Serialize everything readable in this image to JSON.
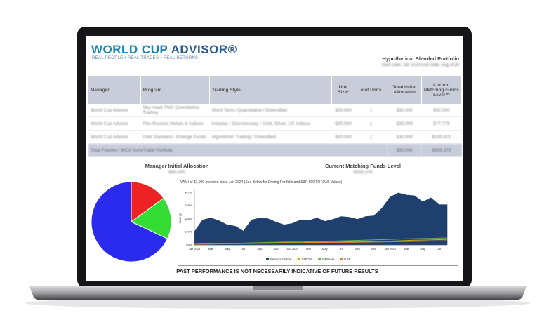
{
  "header": {
    "logo_a": "WORLD CUP",
    "logo_b": "ADVISOR®",
    "tagline": "REAL PEOPLE • REAL TRADES • REAL RETURNS",
    "report_title": "Hypothetical Blended Portfolio",
    "dates": "Start Date: Jan 2024   End Date: Aug 2026"
  },
  "table": {
    "columns": [
      "Manager",
      "Program",
      "Trading Style",
      "Unit Size*",
      "# of Units",
      "Total Initial Allocation",
      "Current Matching Funds Level **"
    ],
    "rows": [
      [
        "World Cup Advisor",
        "Sky Hawk TNG Quantitative Trading",
        "Short Term / Quantitative / Diversified",
        "$30,000",
        "1",
        "$30,000",
        "$92,000"
      ],
      [
        "World Cup Advisor",
        "Flex Rockies Metals & Indices",
        "Intraday / Discretionary / Gold, Silver, US Indices",
        "$30,000",
        "1",
        "$30,000",
        "$77,775"
      ],
      [
        "World Cup Advisor",
        "Gold Standard - Emerge Funds",
        "Algorithmic Trading / Diversified",
        "$30,000",
        "1",
        "$30,000",
        "$135,601"
      ]
    ],
    "total": {
      "label": "Total Futures / WCA Sum/Trade Portfolio",
      "allocation": "$90,000",
      "matching": "$305,376"
    }
  },
  "summary": {
    "allocation_title": "Manager Initial Allocation",
    "allocation_value": "$90,000",
    "matching_title": "Current Matching Funds Level",
    "matching_value": "$305,376"
  },
  "disclaimer": "PAST PERFORMANCE IS NOT NECESSARILY INDICATIVE OF FUTURE RESULTS",
  "chart_data": [
    {
      "type": "pie",
      "values": [
        15,
        17,
        68
      ],
      "colors": [
        "#ee2222",
        "#33dd33",
        "#2b2bee"
      ]
    },
    {
      "type": "area",
      "title": "VAMI of $1,000 Invested since Jan 2024 (See Below for Ending Portfolio and S&P 500 TR VAMI Values)",
      "y_label": "VAMI ($)",
      "categories": [
        "Jan 2024",
        null,
        "Mar",
        null,
        "May",
        null,
        "Jul",
        null,
        "Sep",
        null,
        "Nov",
        null,
        "Jan 2025",
        null,
        "Mar",
        null,
        "May",
        null,
        "Jul",
        null,
        "Sep",
        null,
        "Nov",
        null,
        "Jan 2026",
        null,
        "Mar",
        null,
        "May",
        null,
        "Jul",
        null
      ],
      "ylim": [
        950,
        5000
      ],
      "yticks": [
        {
          "value": 950,
          "label": "$950"
        },
        {
          "value": 1900,
          "label": "$1900"
        },
        {
          "value": 2850,
          "label": "$2850"
        },
        {
          "value": 3800,
          "label": "$3800"
        },
        {
          "value": 4750,
          "label": "$4750"
        }
      ],
      "grid": false,
      "series": [
        {
          "name": "Blended Portfolio",
          "color": "#1f3f6e",
          "values": [
            1900,
            2750,
            2900,
            2700,
            2400,
            2300,
            1950,
            2750,
            2900,
            2850,
            2600,
            2400,
            2500,
            2750,
            2700,
            2900,
            2650,
            2800,
            3000,
            2950,
            2800,
            3000,
            3050,
            3600,
            4400,
            4700,
            4550,
            4500,
            4050,
            4350,
            3850,
            3850
          ]
        },
        {
          "name": "S&P 500",
          "color": "#d9b300",
          "values": [
            1000,
            1010,
            1030,
            1040,
            1050,
            1045,
            1060,
            1070,
            1080,
            1090,
            1100,
            1110,
            1120,
            1115,
            1130,
            1140,
            1150,
            1160,
            1170,
            1180,
            1190,
            1200,
            1210,
            1220,
            1230,
            1250,
            1270,
            1290,
            1300,
            1310,
            1330,
            1350
          ]
        },
        {
          "name": "NASDAQ",
          "color": "#6ab04c",
          "values": [
            1000,
            1020,
            1040,
            1060,
            1070,
            1060,
            1080,
            1100,
            1110,
            1130,
            1140,
            1160,
            1170,
            1160,
            1180,
            1200,
            1210,
            1230,
            1250,
            1260,
            1280,
            1300,
            1320,
            1330,
            1350,
            1370,
            1390,
            1400,
            1410,
            1420,
            1440,
            1450
          ]
        },
        {
          "name": "DJIA",
          "color": "#e07b39",
          "values": [
            1000,
            1005,
            1015,
            1025,
            1030,
            1030,
            1040,
            1050,
            1055,
            1065,
            1070,
            1080,
            1090,
            1085,
            1095,
            1100,
            1110,
            1115,
            1125,
            1130,
            1140,
            1150,
            1160,
            1165,
            1175,
            1185,
            1200,
            1210,
            1220,
            1230,
            1240,
            1250
          ]
        }
      ]
    }
  ]
}
